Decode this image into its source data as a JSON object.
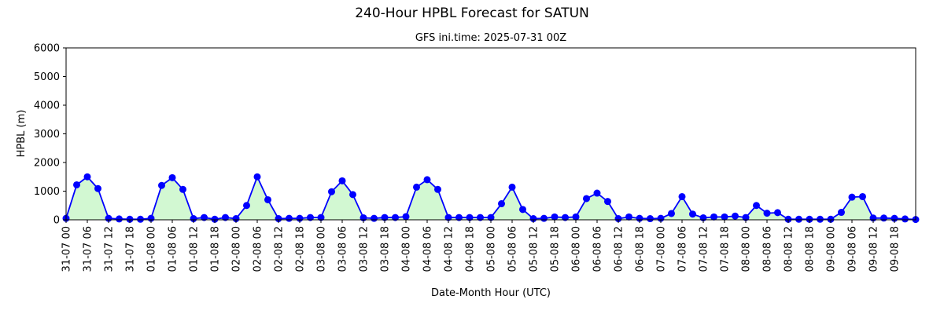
{
  "chart_data": {
    "type": "line",
    "title": "240-Hour HPBL Forecast for SATUN",
    "subtitle": "GFS ini.time: 2025-07-31 00Z",
    "xlabel": "Date-Month Hour (UTC)",
    "ylabel": "HPBL (m)",
    "ylim": [
      0,
      6000
    ],
    "yticks": [
      0,
      1000,
      2000,
      3000,
      4000,
      5000,
      6000
    ],
    "xticks": [
      "31-07 00",
      "31-07 06",
      "31-07 12",
      "31-07 18",
      "01-08 00",
      "01-08 06",
      "01-08 12",
      "01-08 18",
      "02-08 00",
      "02-08 06",
      "02-08 12",
      "02-08 18",
      "03-08 00",
      "03-08 06",
      "03-08 12",
      "03-08 18",
      "04-08 00",
      "04-08 06",
      "04-08 12",
      "04-08 18",
      "05-08 00",
      "05-08 06",
      "05-08 12",
      "05-08 18",
      "06-08 00",
      "06-08 06",
      "06-08 12",
      "06-08 18",
      "07-08 00",
      "07-08 06",
      "07-08 12",
      "07-08 18",
      "08-08 00",
      "08-08 06",
      "08-08 12",
      "08-08 18",
      "09-08 00",
      "09-08 06",
      "09-08 12",
      "09-08 18"
    ],
    "x_step_hours": 3,
    "grid": false,
    "fill_under": true,
    "line_color": "#0000ff",
    "marker_color": "#0000ff",
    "fill_color": "#d2f8d2",
    "series": [
      {
        "values": [
          50,
          1220,
          1500,
          1090,
          50,
          30,
          20,
          20,
          50,
          1200,
          1470,
          1060,
          40,
          80,
          20,
          80,
          40,
          500,
          1500,
          700,
          40,
          50,
          50,
          80,
          80,
          980,
          1360,
          880,
          70,
          50,
          80,
          80,
          110,
          1140,
          1400,
          1060,
          80,
          80,
          80,
          80,
          80,
          560,
          1140,
          360,
          40,
          50,
          100,
          80,
          100,
          740,
          930,
          640,
          40,
          100,
          50,
          40,
          50,
          220,
          810,
          200,
          70,
          100,
          100,
          130,
          80,
          500,
          230,
          250,
          20,
          20,
          20,
          20,
          20,
          260,
          790,
          810,
          60,
          60,
          50,
          30,
          10
        ]
      }
    ]
  }
}
